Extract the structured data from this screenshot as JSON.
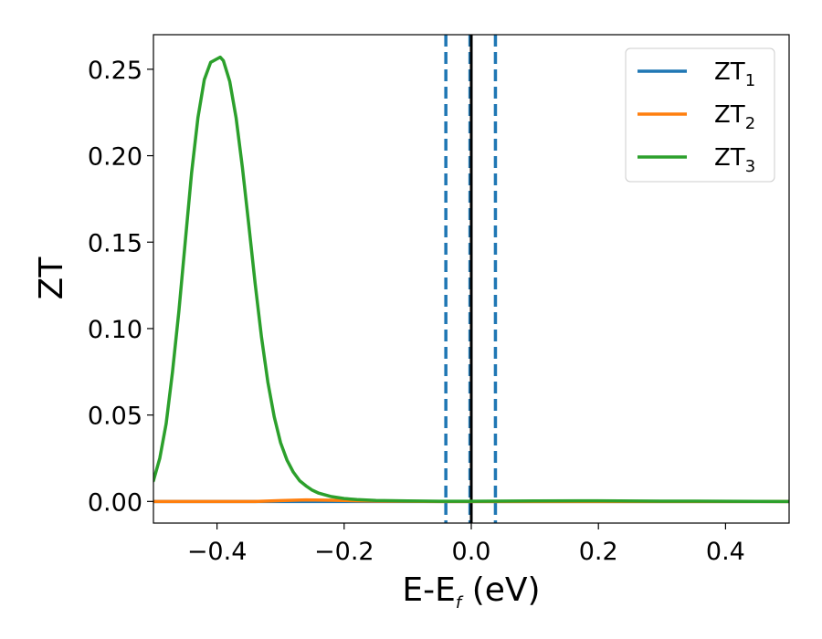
{
  "chart_data": {
    "type": "line",
    "xlabel_main": "E-E",
    "xlabel_sub": "f",
    "xlabel_unit": " (eV)",
    "ylabel": "ZT",
    "xlim": [
      -0.5,
      0.5
    ],
    "ylim": [
      -0.0125,
      0.27
    ],
    "x_ticks": [
      -0.4,
      -0.2,
      0.0,
      0.2,
      0.4
    ],
    "x_tick_labels": [
      "−0.4",
      "−0.2",
      "0.0",
      "0.2",
      "0.4"
    ],
    "y_ticks": [
      0.0,
      0.05,
      0.1,
      0.15,
      0.2,
      0.25
    ],
    "y_tick_labels": [
      "0.00",
      "0.05",
      "0.10",
      "0.15",
      "0.20",
      "0.25"
    ],
    "grid": false,
    "legend_position": "top-right",
    "series": [
      {
        "name_main": "ZT",
        "name_sub": "1",
        "color": "#1f77b4",
        "x": [
          -0.5,
          0.5
        ],
        "y": [
          0.0,
          0.0
        ]
      },
      {
        "name_main": "ZT",
        "name_sub": "2",
        "color": "#ff7f0e",
        "x": [
          -0.5,
          -0.4,
          -0.34,
          -0.3,
          -0.26,
          -0.22,
          -0.18,
          -0.14,
          -0.1,
          -0.05,
          0.0,
          0.1,
          0.2,
          0.3,
          0.4,
          0.5
        ],
        "y": [
          0.0,
          0.0,
          0.0,
          0.0005,
          0.0009,
          0.0007,
          0.0004,
          0.0002,
          0.0001,
          0.0,
          0.0,
          0.0,
          0.0,
          0.0,
          0.0,
          0.0
        ]
      },
      {
        "name_main": "ZT",
        "name_sub": "3",
        "color": "#2ca02c",
        "x": [
          -0.5,
          -0.49,
          -0.48,
          -0.47,
          -0.46,
          -0.45,
          -0.44,
          -0.43,
          -0.42,
          -0.41,
          -0.4,
          -0.395,
          -0.39,
          -0.38,
          -0.37,
          -0.36,
          -0.35,
          -0.34,
          -0.33,
          -0.32,
          -0.31,
          -0.3,
          -0.29,
          -0.28,
          -0.27,
          -0.26,
          -0.25,
          -0.24,
          -0.22,
          -0.2,
          -0.18,
          -0.15,
          -0.1,
          -0.05,
          0.0,
          0.1,
          0.2,
          0.3,
          0.4,
          0.5
        ],
        "y": [
          0.012,
          0.025,
          0.045,
          0.075,
          0.11,
          0.15,
          0.19,
          0.222,
          0.244,
          0.254,
          0.256,
          0.257,
          0.255,
          0.243,
          0.222,
          0.193,
          0.16,
          0.126,
          0.095,
          0.069,
          0.049,
          0.034,
          0.024,
          0.017,
          0.012,
          0.009,
          0.0065,
          0.0048,
          0.0028,
          0.0017,
          0.0011,
          0.0006,
          0.0003,
          0.0001,
          0.0001,
          0.0003,
          0.0004,
          0.0002,
          0.0001,
          0.0
        ]
      }
    ],
    "vertical_lines": [
      {
        "x": -0.04,
        "color": "#1f77b4",
        "style": "dashed"
      },
      {
        "x": -0.002,
        "color": "#1f77b4",
        "style": "dashed"
      },
      {
        "x": 0.038,
        "color": "#1f77b4",
        "style": "dashed"
      },
      {
        "x": 0.0,
        "color": "#000000",
        "style": "solid"
      }
    ]
  }
}
